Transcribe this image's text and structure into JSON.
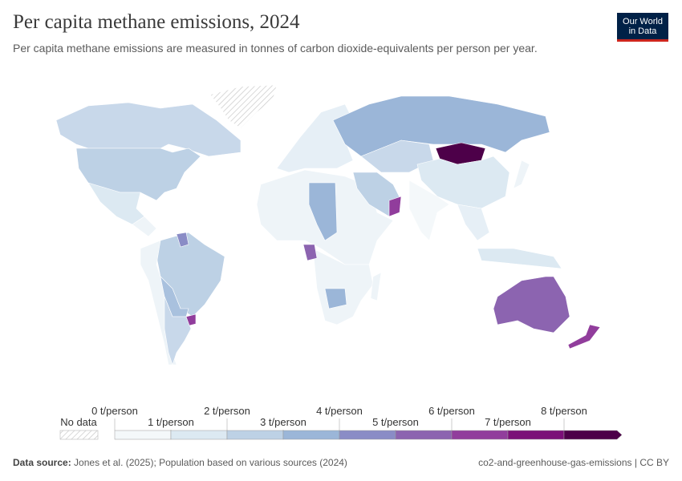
{
  "header": {
    "title": "Per capita methane emissions, 2024",
    "subtitle": "Per capita methane emissions are measured in tonnes of carbon dioxide-equivalents per person per year.",
    "logo": [
      "Our World",
      "in Data"
    ]
  },
  "legend": {
    "no_data": "No data",
    "labels": [
      "0 t/person",
      "1 t/person",
      "2 t/person",
      "3 t/person",
      "4 t/person",
      "5 t/person",
      "6 t/person",
      "7 t/person",
      "8 t/person"
    ],
    "colors": [
      "#f4f8fa",
      "#dce9f2",
      "#bdd1e5",
      "#9bb6d8",
      "#8a8cc6",
      "#8c64b0",
      "#913d9c",
      "#7b0f78",
      "#4d0049"
    ]
  },
  "footer": {
    "source_label": "Data source:",
    "source": "Jones et al. (2025); Population based on various sources (2024)",
    "slug": "co2-and-greenhouse-gas-emissions | CC BY"
  }
}
